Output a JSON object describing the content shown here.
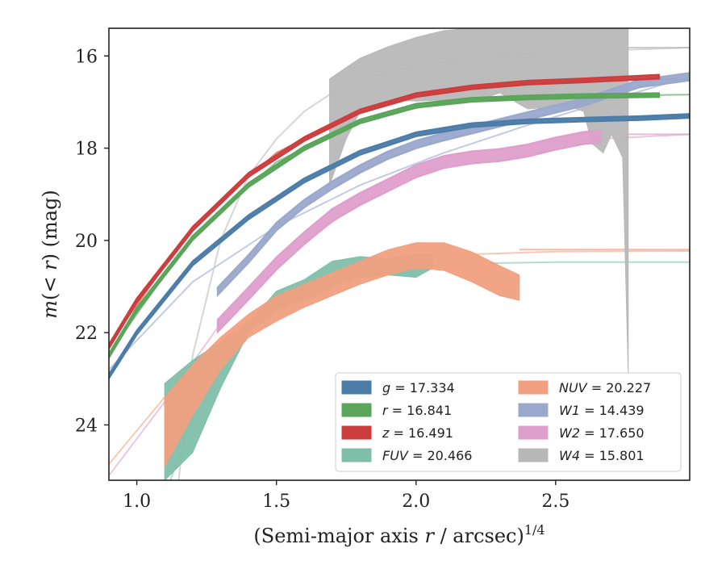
{
  "chart_data": {
    "type": "line",
    "xlabel": "(Semi-major axis r / arcsec)^{1/4}",
    "ylabel": "m(< r) (mag)",
    "xlim": [
      0.9,
      2.98
    ],
    "ylim": [
      25.2,
      15.4
    ],
    "y_inverted": true,
    "xticks": [
      "1.0",
      "1.5",
      "2.0",
      "2.5"
    ],
    "yticks": [
      "16",
      "18",
      "20",
      "22",
      "24"
    ],
    "grid": false,
    "legend_placement": "lower-right",
    "series": [
      {
        "name": "g = 17.334",
        "color": "#4c7ca8",
        "kind": "band",
        "x": [
          0.9,
          1.0,
          1.2,
          1.4,
          1.6,
          1.8,
          2.0,
          2.2,
          2.4,
          2.6,
          2.8,
          2.98
        ],
        "y": [
          22.95,
          22.0,
          20.5,
          19.5,
          18.7,
          18.1,
          17.7,
          17.5,
          17.42,
          17.38,
          17.35,
          17.3
        ],
        "width": 0.08
      },
      {
        "name": "r = 16.841",
        "color": "#5aa55a",
        "kind": "band",
        "x": [
          0.9,
          1.0,
          1.2,
          1.4,
          1.6,
          1.8,
          2.0,
          2.2,
          2.4,
          2.6,
          2.87
        ],
        "y": [
          22.5,
          21.5,
          19.95,
          18.8,
          18.0,
          17.42,
          17.08,
          16.95,
          16.9,
          16.87,
          16.85
        ],
        "width": 0.08
      },
      {
        "name": "z = 16.491",
        "color": "#cc3d3d",
        "kind": "band",
        "x": [
          0.9,
          1.0,
          1.2,
          1.4,
          1.6,
          1.8,
          2.0,
          2.2,
          2.4,
          2.6,
          2.87
        ],
        "y": [
          22.3,
          21.3,
          19.75,
          18.58,
          17.8,
          17.2,
          16.85,
          16.68,
          16.58,
          16.53,
          16.45
        ],
        "width": 0.08
      },
      {
        "name": "FUV = 20.466",
        "color": "#7fbfaa",
        "kind": "band",
        "x": [
          1.1,
          1.2,
          1.3,
          1.4,
          1.5,
          1.6,
          1.7,
          1.8,
          1.9,
          2.0,
          2.06
        ],
        "y_upper": [
          23.1,
          22.6,
          22.2,
          21.8,
          21.1,
          20.85,
          20.45,
          20.35,
          20.4,
          20.3,
          20.3
        ],
        "y_lower": [
          25.2,
          24.6,
          23.2,
          22.0,
          21.5,
          21.3,
          21.0,
          20.8,
          20.75,
          20.8,
          20.6
        ]
      },
      {
        "name": "NUV = 20.227",
        "color": "#f0a080",
        "kind": "band",
        "x": [
          1.1,
          1.2,
          1.3,
          1.4,
          1.5,
          1.6,
          1.7,
          1.8,
          1.9,
          2.0,
          2.1,
          2.2,
          2.3,
          2.37
        ],
        "y_upper": [
          23.4,
          22.7,
          22.1,
          21.6,
          21.2,
          20.95,
          20.7,
          20.45,
          20.2,
          20.05,
          20.05,
          20.25,
          20.55,
          20.75
        ],
        "y_lower": [
          24.9,
          23.8,
          22.8,
          22.1,
          21.75,
          21.45,
          21.2,
          20.95,
          20.75,
          20.6,
          20.65,
          20.9,
          21.2,
          21.3
        ],
        "extrapolation_y": 20.2
      },
      {
        "name": "W1 = 14.439",
        "color": "#9aa8cc",
        "kind": "band",
        "x": [
          1.29,
          1.4,
          1.5,
          1.6,
          1.7,
          1.8,
          1.9,
          2.0,
          2.1,
          2.2,
          2.3,
          2.4,
          2.5,
          2.6,
          2.7,
          2.8,
          2.98
        ],
        "y": [
          21.1,
          20.4,
          19.7,
          19.2,
          18.8,
          18.45,
          18.15,
          17.92,
          17.75,
          17.6,
          17.45,
          17.3,
          17.15,
          17.0,
          16.8,
          16.6,
          16.45
        ],
        "width": 0.16
      },
      {
        "name": "W2 = 17.650",
        "color": "#de9fcc",
        "kind": "band",
        "x": [
          1.29,
          1.4,
          1.5,
          1.6,
          1.7,
          1.8,
          1.9,
          2.0,
          2.1,
          2.2,
          2.3,
          2.4,
          2.5,
          2.6,
          2.66
        ],
        "y": [
          21.85,
          21.15,
          20.5,
          19.95,
          19.45,
          19.1,
          18.8,
          18.5,
          18.3,
          18.2,
          18.15,
          18.05,
          17.9,
          17.78,
          17.75
        ],
        "width": 0.26,
        "extrapolation_y": 17.7
      },
      {
        "name": "W4 = 15.801",
        "color": "#b8b8b8",
        "kind": "band",
        "x": [
          1.69,
          1.75,
          1.8,
          1.9,
          2.0,
          2.1,
          2.2,
          2.3,
          2.4,
          2.5,
          2.55,
          2.6,
          2.63,
          2.67,
          2.7,
          2.74,
          2.76
        ],
        "y_upper": [
          16.5,
          16.25,
          16.05,
          15.8,
          15.6,
          15.45,
          15.4,
          15.4,
          15.4,
          15.4,
          15.4,
          15.4,
          15.4,
          15.4,
          15.4,
          15.4,
          15.4
        ],
        "y_lower": [
          18.8,
          17.8,
          17.2,
          16.95,
          16.98,
          16.95,
          17.0,
          16.8,
          17.15,
          17.1,
          17.1,
          17.2,
          17.9,
          18.1,
          17.7,
          18.2,
          22.9
        ],
        "extrapolation_y": 15.82
      }
    ],
    "model_curves": [
      {
        "series": "g = 17.334",
        "color": "#6d93ba",
        "x": [
          0.9,
          1.0,
          1.2,
          1.4,
          1.6,
          1.8,
          2.0,
          2.2,
          2.4,
          2.6,
          2.8,
          2.98
        ],
        "y": [
          22.9,
          21.95,
          20.45,
          19.45,
          18.65,
          18.05,
          17.67,
          17.48,
          17.4,
          17.36,
          17.33,
          17.3
        ]
      },
      {
        "series": "r = 16.841",
        "color": "#7fb97f",
        "x": [
          0.9,
          1.2,
          1.5,
          1.8,
          2.1,
          2.4,
          2.7,
          2.98
        ],
        "y": [
          22.45,
          19.9,
          18.3,
          17.4,
          17.0,
          16.9,
          16.86,
          16.84
        ]
      },
      {
        "series": "z = 16.491",
        "color": "#d96a6a",
        "x": [
          0.9,
          1.2,
          1.5,
          1.8,
          2.1,
          2.4,
          2.7,
          2.98
        ],
        "y": [
          22.25,
          19.7,
          18.1,
          17.18,
          16.75,
          16.58,
          16.52,
          16.5
        ]
      },
      {
        "series": "FUV = 20.466",
        "color": "#a8d6c6",
        "x": [
          1.12,
          1.3,
          1.5,
          1.7,
          1.9,
          2.2,
          2.5,
          2.98
        ],
        "y": [
          25.2,
          22.3,
          21.3,
          20.8,
          20.6,
          20.5,
          20.47,
          20.47
        ]
      },
      {
        "series": "NUV = 20.227",
        "color": "#f5c0a8",
        "x": [
          0.9,
          1.1,
          1.3,
          1.5,
          1.7,
          1.9,
          2.2,
          2.5,
          2.98
        ],
        "y": [
          24.85,
          23.4,
          22.2,
          21.3,
          20.8,
          20.5,
          20.3,
          20.24,
          20.23
        ]
      },
      {
        "series": "W1 = 14.439",
        "color": "#b8c2dc",
        "x": [
          0.9,
          1.2,
          1.5,
          1.8,
          2.1,
          2.4,
          2.7,
          2.98
        ],
        "y": [
          22.8,
          20.9,
          19.7,
          18.8,
          18.1,
          17.5,
          16.95,
          16.45
        ]
      },
      {
        "series": "W2 = 17.650",
        "color": "#ebbcdc",
        "x": [
          0.9,
          1.1,
          1.3,
          1.5,
          1.7,
          1.9,
          2.2,
          2.5,
          2.98
        ],
        "y": [
          25.1,
          23.5,
          21.8,
          20.5,
          19.6,
          18.8,
          18.1,
          17.85,
          17.7
        ]
      },
      {
        "series": "W4 = 15.801",
        "color": "#cfcfcf",
        "x": [
          1.15,
          1.2,
          1.3,
          1.4,
          1.5,
          1.6,
          1.7,
          1.8,
          2.0,
          2.2,
          2.5,
          2.98
        ],
        "y": [
          25.2,
          22.5,
          20.0,
          18.6,
          17.8,
          17.2,
          16.8,
          16.5,
          16.2,
          16.05,
          15.92,
          15.82
        ]
      }
    ],
    "legend": {
      "columns": [
        [
          "g = 17.334",
          "r = 16.841",
          "z = 16.491",
          "FUV = 20.466"
        ],
        [
          "NUV = 20.227",
          "W1 = 14.439",
          "W2 = 17.650",
          "W4 = 15.801"
        ]
      ]
    }
  }
}
